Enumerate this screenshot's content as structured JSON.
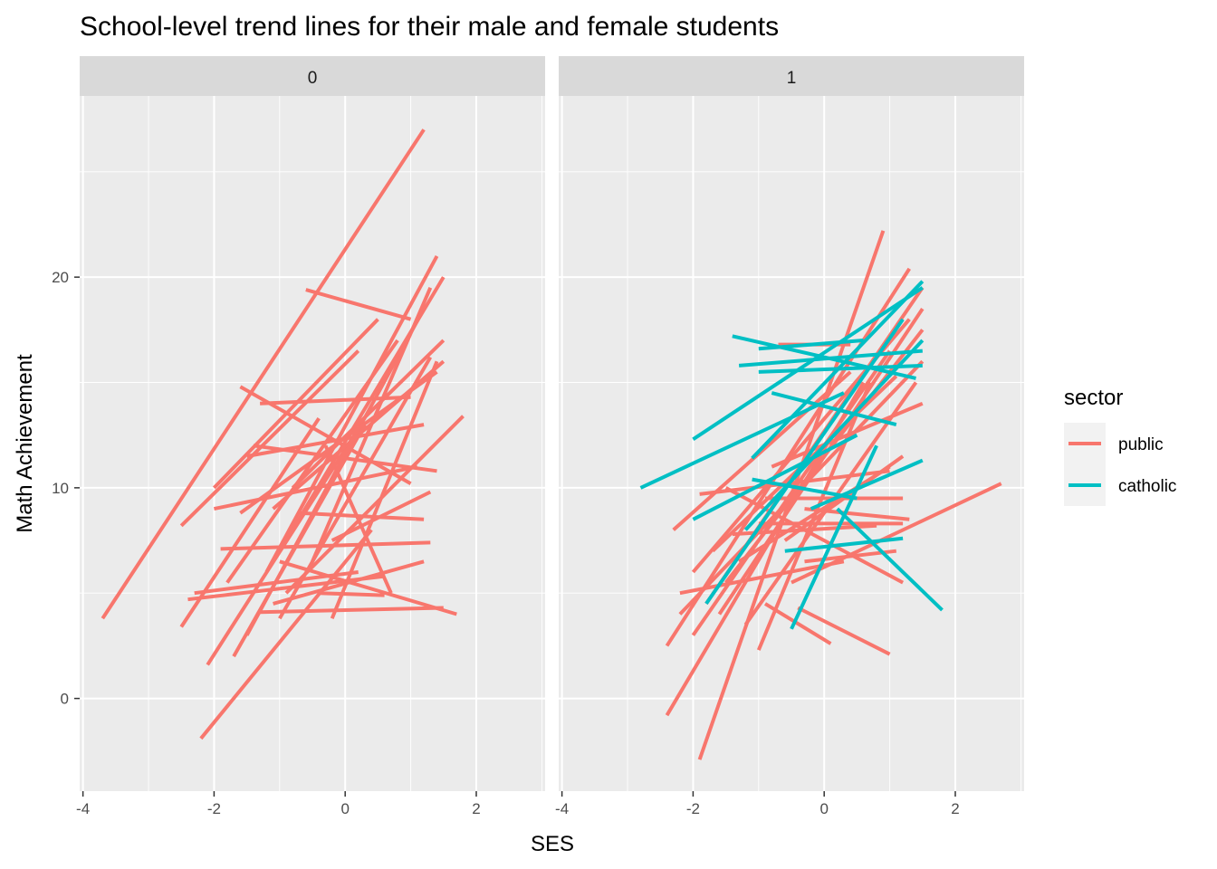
{
  "chart_data": {
    "type": "line",
    "title": "School-level trend lines for their male and female students",
    "xlabel": "SES",
    "ylabel": "Math Achievement",
    "xlim": [
      -4.05,
      3.05
    ],
    "ylim": [
      -4.4,
      28.6
    ],
    "x_ticks": [
      -4,
      -2,
      0,
      2
    ],
    "x_tick_labels": [
      "-4",
      "-2",
      "0",
      "2"
    ],
    "y_ticks": [
      0,
      10,
      20
    ],
    "y_tick_labels": [
      "0",
      "10",
      "20"
    ],
    "grid": true,
    "legend": {
      "title": "sector",
      "position": "right",
      "entries": [
        {
          "label": "public",
          "color": "#F8766D"
        },
        {
          "label": "catholic",
          "color": "#00BFC4"
        }
      ]
    },
    "colors": {
      "public": "#F8766D",
      "catholic": "#00BFC4",
      "panel_bg": "#EBEBEB",
      "strip_bg": "#D9D9D9",
      "grid": "#FFFFFF"
    },
    "facets": [
      {
        "label": "0",
        "segments": [
          {
            "sector": "public",
            "x1": -3.7,
            "y1": 3.8,
            "x2": 1.2,
            "y2": 27.0
          },
          {
            "sector": "public",
            "x1": -2.2,
            "y1": -1.9,
            "x2": 0.4,
            "y2": 8.0
          },
          {
            "sector": "public",
            "x1": -2.5,
            "y1": 8.2,
            "x2": 0.2,
            "y2": 16.5
          },
          {
            "sector": "public",
            "x1": -2.4,
            "y1": 4.7,
            "x2": 0.6,
            "y2": 5.8
          },
          {
            "sector": "public",
            "x1": -2.5,
            "y1": 3.4,
            "x2": -0.4,
            "y2": 13.3
          },
          {
            "sector": "public",
            "x1": -2.1,
            "y1": 1.6,
            "x2": 0.2,
            "y2": 12.8
          },
          {
            "sector": "public",
            "x1": -1.9,
            "y1": 7.1,
            "x2": 1.3,
            "y2": 7.4
          },
          {
            "sector": "public",
            "x1": -1.3,
            "y1": 4.1,
            "x2": 1.5,
            "y2": 4.3
          },
          {
            "sector": "public",
            "x1": -1.6,
            "y1": 14.8,
            "x2": 1.0,
            "y2": 10.2
          },
          {
            "sector": "public",
            "x1": -1.0,
            "y1": 6.5,
            "x2": 1.7,
            "y2": 4.0
          },
          {
            "sector": "public",
            "x1": -0.9,
            "y1": 5.0,
            "x2": 1.8,
            "y2": 13.4
          },
          {
            "sector": "public",
            "x1": -1.5,
            "y1": 3.0,
            "x2": 1.2,
            "y2": 18.5
          },
          {
            "sector": "public",
            "x1": -1.2,
            "y1": 6.0,
            "x2": 1.4,
            "y2": 21.0
          },
          {
            "sector": "public",
            "x1": -0.9,
            "y1": 7.5,
            "x2": 1.5,
            "y2": 20.0
          },
          {
            "sector": "public",
            "x1": -1.8,
            "y1": 5.5,
            "x2": 0.8,
            "y2": 17.0
          },
          {
            "sector": "public",
            "x1": -1.1,
            "y1": 9.0,
            "x2": 1.5,
            "y2": 16.0
          },
          {
            "sector": "public",
            "x1": -0.6,
            "y1": 19.4,
            "x2": 1.0,
            "y2": 18.0
          },
          {
            "sector": "public",
            "x1": -2.0,
            "y1": 9.0,
            "x2": 1.1,
            "y2": 11.0
          },
          {
            "sector": "public",
            "x1": -1.4,
            "y1": 12.0,
            "x2": 1.4,
            "y2": 10.8
          },
          {
            "sector": "public",
            "x1": -0.7,
            "y1": 8.8,
            "x2": 1.2,
            "y2": 8.5
          },
          {
            "sector": "public",
            "x1": -1.7,
            "y1": 2.0,
            "x2": 0.3,
            "y2": 13.0
          },
          {
            "sector": "public",
            "x1": -0.4,
            "y1": 5.0,
            "x2": 0.6,
            "y2": 4.9
          },
          {
            "sector": "public",
            "x1": -0.3,
            "y1": 12.0,
            "x2": 0.7,
            "y2": 5.0
          },
          {
            "sector": "public",
            "x1": -1.0,
            "y1": 3.8,
            "x2": 1.3,
            "y2": 16.2
          },
          {
            "sector": "public",
            "x1": -0.2,
            "y1": 7.5,
            "x2": 1.3,
            "y2": 9.8
          },
          {
            "sector": "public",
            "x1": -2.0,
            "y1": 10.0,
            "x2": 0.5,
            "y2": 18.0
          },
          {
            "sector": "public",
            "x1": -1.6,
            "y1": 8.8,
            "x2": 1.4,
            "y2": 15.5
          },
          {
            "sector": "public",
            "x1": -1.3,
            "y1": 14.0,
            "x2": 1.0,
            "y2": 14.3
          },
          {
            "sector": "public",
            "x1": -0.8,
            "y1": 10.0,
            "x2": 1.5,
            "y2": 17.0
          },
          {
            "sector": "public",
            "x1": -0.5,
            "y1": 6.5,
            "x2": 1.3,
            "y2": 19.5
          },
          {
            "sector": "public",
            "x1": -1.5,
            "y1": 11.5,
            "x2": 1.2,
            "y2": 13.0
          },
          {
            "sector": "public",
            "x1": -0.2,
            "y1": 3.8,
            "x2": 1.4,
            "y2": 16.0
          },
          {
            "sector": "public",
            "x1": -2.3,
            "y1": 5.0,
            "x2": 0.2,
            "y2": 6.0
          },
          {
            "sector": "public",
            "x1": -1.1,
            "y1": 4.5,
            "x2": 1.2,
            "y2": 6.5
          }
        ]
      },
      {
        "label": "1",
        "segments": [
          {
            "sector": "public",
            "x1": -1.9,
            "y1": -2.9,
            "x2": 0.9,
            "y2": 22.2
          },
          {
            "sector": "public",
            "x1": -2.4,
            "y1": -0.8,
            "x2": 0.6,
            "y2": 15.0
          },
          {
            "sector": "public",
            "x1": -2.4,
            "y1": 2.5,
            "x2": 1.3,
            "y2": 20.4
          },
          {
            "sector": "public",
            "x1": -2.2,
            "y1": 4.0,
            "x2": 1.5,
            "y2": 16.0
          },
          {
            "sector": "public",
            "x1": -1.8,
            "y1": 4.5,
            "x2": 1.5,
            "y2": 19.5
          },
          {
            "sector": "public",
            "x1": -2.0,
            "y1": 6.0,
            "x2": 1.3,
            "y2": 18.0
          },
          {
            "sector": "public",
            "x1": -1.5,
            "y1": 5.5,
            "x2": 1.5,
            "y2": 17.5
          },
          {
            "sector": "public",
            "x1": -1.0,
            "y1": 2.3,
            "x2": 0.7,
            "y2": 15.0
          },
          {
            "sector": "public",
            "x1": -0.4,
            "y1": 4.3,
            "x2": 1.0,
            "y2": 2.1
          },
          {
            "sector": "public",
            "x1": -0.9,
            "y1": 4.5,
            "x2": 0.1,
            "y2": 2.6
          },
          {
            "sector": "public",
            "x1": -0.5,
            "y1": 5.5,
            "x2": 2.7,
            "y2": 10.2
          },
          {
            "sector": "public",
            "x1": -1.5,
            "y1": 10.0,
            "x2": 1.2,
            "y2": 5.5
          },
          {
            "sector": "public",
            "x1": -1.0,
            "y1": 8.3,
            "x2": 1.2,
            "y2": 8.3
          },
          {
            "sector": "public",
            "x1": -2.3,
            "y1": 8.0,
            "x2": 0.4,
            "y2": 15.5
          },
          {
            "sector": "public",
            "x1": -1.3,
            "y1": 6.5,
            "x2": 1.0,
            "y2": 11.0
          },
          {
            "sector": "public",
            "x1": -0.3,
            "y1": 9.0,
            "x2": 1.3,
            "y2": 8.5
          },
          {
            "sector": "public",
            "x1": -0.8,
            "y1": 11.0,
            "x2": 1.5,
            "y2": 14.0
          },
          {
            "sector": "public",
            "x1": -1.7,
            "y1": 7.0,
            "x2": 1.1,
            "y2": 15.3
          },
          {
            "sector": "public",
            "x1": -0.7,
            "y1": 16.8,
            "x2": 0.4,
            "y2": 16.8
          },
          {
            "sector": "public",
            "x1": -1.9,
            "y1": 9.7,
            "x2": 1.0,
            "y2": 10.8
          },
          {
            "sector": "public",
            "x1": -1.2,
            "y1": 3.5,
            "x2": 1.4,
            "y2": 15.0
          },
          {
            "sector": "public",
            "x1": -2.2,
            "y1": 5.0,
            "x2": 0.3,
            "y2": 6.5
          },
          {
            "sector": "public",
            "x1": -0.6,
            "y1": 7.5,
            "x2": 1.2,
            "y2": 11.5
          },
          {
            "sector": "public",
            "x1": -1.6,
            "y1": 4.0,
            "x2": 1.5,
            "y2": 18.5
          },
          {
            "sector": "public",
            "x1": -0.9,
            "y1": 9.5,
            "x2": 1.2,
            "y2": 9.5
          },
          {
            "sector": "public",
            "x1": -1.4,
            "y1": 7.8,
            "x2": 0.8,
            "y2": 8.2
          },
          {
            "sector": "public",
            "x1": -0.3,
            "y1": 6.5,
            "x2": 1.1,
            "y2": 7.0
          },
          {
            "sector": "public",
            "x1": -2.0,
            "y1": 3.0,
            "x2": 1.0,
            "y2": 16.5
          },
          {
            "sector": "catholic",
            "x1": -2.8,
            "y1": 10.0,
            "x2": 0.3,
            "y2": 14.5
          },
          {
            "sector": "catholic",
            "x1": -1.4,
            "y1": 17.2,
            "x2": 1.4,
            "y2": 15.2
          },
          {
            "sector": "catholic",
            "x1": -1.0,
            "y1": 16.6,
            "x2": 0.6,
            "y2": 17.0
          },
          {
            "sector": "catholic",
            "x1": -1.3,
            "y1": 15.8,
            "x2": 1.5,
            "y2": 16.5
          },
          {
            "sector": "catholic",
            "x1": -1.0,
            "y1": 15.5,
            "x2": 1.5,
            "y2": 15.8
          },
          {
            "sector": "catholic",
            "x1": -2.0,
            "y1": 12.3,
            "x2": 1.5,
            "y2": 19.5
          },
          {
            "sector": "catholic",
            "x1": -1.1,
            "y1": 11.4,
            "x2": 1.5,
            "y2": 19.8
          },
          {
            "sector": "catholic",
            "x1": -1.2,
            "y1": 8.0,
            "x2": 1.5,
            "y2": 17.0
          },
          {
            "sector": "catholic",
            "x1": -0.2,
            "y1": 9.0,
            "x2": 1.5,
            "y2": 11.3
          },
          {
            "sector": "catholic",
            "x1": -0.5,
            "y1": 3.3,
            "x2": 0.8,
            "y2": 12.0
          },
          {
            "sector": "catholic",
            "x1": 0.2,
            "y1": 9.0,
            "x2": 1.8,
            "y2": 4.2
          },
          {
            "sector": "catholic",
            "x1": -1.8,
            "y1": 4.5,
            "x2": 1.2,
            "y2": 18.0
          },
          {
            "sector": "catholic",
            "x1": -1.1,
            "y1": 10.4,
            "x2": 0.5,
            "y2": 9.5
          },
          {
            "sector": "catholic",
            "x1": -0.8,
            "y1": 14.5,
            "x2": 1.1,
            "y2": 13.0
          },
          {
            "sector": "catholic",
            "x1": -0.6,
            "y1": 7.0,
            "x2": 1.2,
            "y2": 7.6
          },
          {
            "sector": "catholic",
            "x1": -2.0,
            "y1": 8.5,
            "x2": 0.5,
            "y2": 12.5
          }
        ]
      }
    ]
  }
}
